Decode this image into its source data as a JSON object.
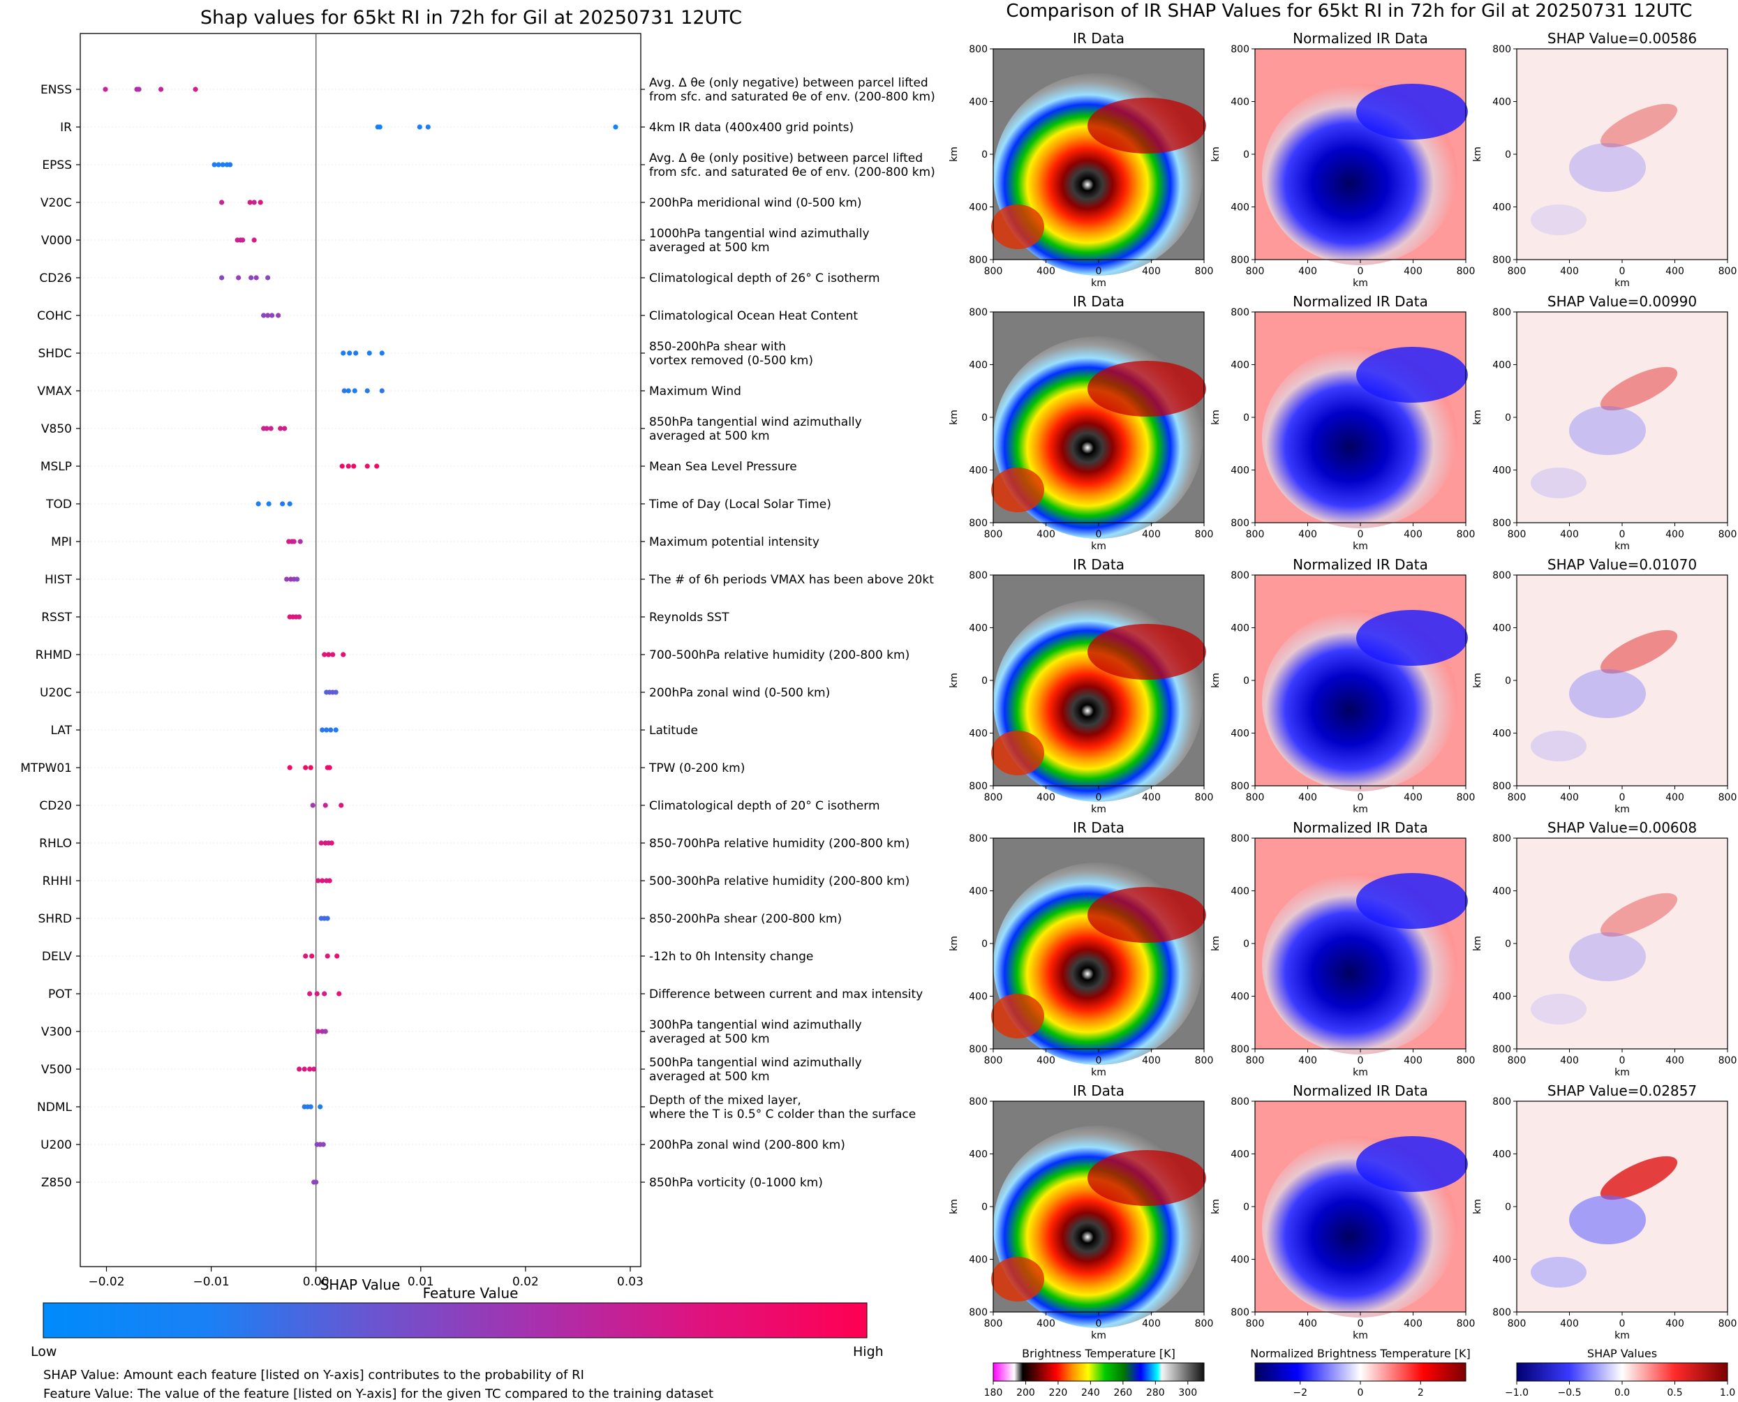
{
  "chart_data": [
    {
      "type": "scatter",
      "title": "Shap values for 65kt RI in 72h for Gil at 20250731 12UTC",
      "xlabel": "SHAP Value",
      "xlim": [
        -0.0225,
        0.031
      ],
      "x_ticks": [
        "−0.02",
        "−0.01",
        "0.00",
        "0.01",
        "0.02",
        "0.03"
      ],
      "x_tick_values": [
        -0.02,
        -0.01,
        0.0,
        0.01,
        0.02,
        0.03
      ],
      "colorbar": {
        "title": "Feature Value",
        "low_label": "Low",
        "high_label": "High",
        "colors": [
          "#008bfb",
          "#3a6fe8",
          "#7a4fc8",
          "#b12fa8",
          "#e0147a",
          "#ff0052"
        ]
      },
      "features": [
        {
          "name": "ENSS",
          "desc": [
            "Avg. Δ θe (only negative) between parcel lifted",
            "from sfc. and saturated θe of env. (200-800 km)"
          ],
          "points": [
            [
              -0.0201,
              0.7
            ],
            [
              -0.0171,
              0.65
            ],
            [
              -0.0169,
              0.6
            ],
            [
              -0.0148,
              0.7
            ],
            [
              -0.0115,
              0.75
            ]
          ]
        },
        {
          "name": "IR",
          "desc": [
            "4km IR data (400x400 grid points)"
          ],
          "points": [
            [
              0.0059,
              0.1
            ],
            [
              0.0061,
              0.05
            ],
            [
              0.0099,
              0.1
            ],
            [
              0.0107,
              0.1
            ],
            [
              0.0286,
              0.05
            ]
          ]
        },
        {
          "name": "EPSS",
          "desc": [
            "Avg. Δ θe (only positive) between parcel lifted",
            "from sfc. and saturated θe of env. (200-800 km)"
          ],
          "points": [
            [
              -0.0097,
              0.1
            ],
            [
              -0.0093,
              0.08
            ],
            [
              -0.0089,
              0.1
            ],
            [
              -0.0085,
              0.05
            ],
            [
              -0.0082,
              0.12
            ]
          ]
        },
        {
          "name": "V20C",
          "desc": [
            "200hPa meridional wind (0-500 km)"
          ],
          "points": [
            [
              -0.009,
              0.7
            ],
            [
              -0.0063,
              0.75
            ],
            [
              -0.0059,
              0.7
            ],
            [
              -0.0053,
              0.8
            ]
          ]
        },
        {
          "name": "V000",
          "desc": [
            "1000hPa tangential wind azimuthally",
            "averaged at 500 km"
          ],
          "points": [
            [
              -0.0075,
              0.7
            ],
            [
              -0.0072,
              0.72
            ],
            [
              -0.007,
              0.68
            ],
            [
              -0.0059,
              0.75
            ]
          ]
        },
        {
          "name": "CD26",
          "desc": [
            "Climatological depth of 26° C isotherm"
          ],
          "points": [
            [
              -0.009,
              0.45
            ],
            [
              -0.0074,
              0.5
            ],
            [
              -0.0062,
              0.45
            ],
            [
              -0.0057,
              0.5
            ],
            [
              -0.0046,
              0.45
            ]
          ]
        },
        {
          "name": "COHC",
          "desc": [
            "Climatological Ocean Heat Content"
          ],
          "points": [
            [
              -0.005,
              0.45
            ],
            [
              -0.0046,
              0.5
            ],
            [
              -0.0042,
              0.45
            ],
            [
              -0.0036,
              0.5
            ]
          ]
        },
        {
          "name": "SHDC",
          "desc": [
            "850-200hPa shear with",
            "vortex removed (0-500 km)"
          ],
          "points": [
            [
              0.0026,
              0.1
            ],
            [
              0.0032,
              0.1
            ],
            [
              0.0038,
              0.12
            ],
            [
              0.0051,
              0.1
            ],
            [
              0.0063,
              0.1
            ]
          ]
        },
        {
          "name": "VMAX",
          "desc": [
            "Maximum Wind"
          ],
          "points": [
            [
              0.0027,
              0.15
            ],
            [
              0.0031,
              0.12
            ],
            [
              0.0037,
              0.1
            ],
            [
              0.0049,
              0.12
            ],
            [
              0.0063,
              0.15
            ]
          ]
        },
        {
          "name": "V850",
          "desc": [
            "850hPa tangential wind azimuthally",
            "averaged at 500 km"
          ],
          "points": [
            [
              -0.005,
              0.7
            ],
            [
              -0.0047,
              0.72
            ],
            [
              -0.0043,
              0.7
            ],
            [
              -0.0034,
              0.75
            ],
            [
              -0.003,
              0.72
            ]
          ]
        },
        {
          "name": "MSLP",
          "desc": [
            "Mean Sea Level Pressure"
          ],
          "points": [
            [
              0.0025,
              0.9
            ],
            [
              0.0031,
              0.88
            ],
            [
              0.0036,
              0.9
            ],
            [
              0.0049,
              0.88
            ],
            [
              0.0058,
              0.9
            ]
          ]
        },
        {
          "name": "TOD",
          "desc": [
            "Time of Day (Local Solar Time)"
          ],
          "points": [
            [
              -0.0055,
              0.1
            ],
            [
              -0.0045,
              0.08
            ],
            [
              -0.0032,
              0.12
            ],
            [
              -0.0025,
              0.1
            ]
          ]
        },
        {
          "name": "MPI",
          "desc": [
            "Maximum potential intensity"
          ],
          "points": [
            [
              -0.0026,
              0.75
            ],
            [
              -0.0023,
              0.72
            ],
            [
              -0.0021,
              0.7
            ],
            [
              -0.0015,
              0.6
            ]
          ]
        },
        {
          "name": "HIST",
          "desc": [
            "The # of 6h periods VMAX has been above 20kt"
          ],
          "points": [
            [
              -0.0028,
              0.5
            ],
            [
              -0.0024,
              0.55
            ],
            [
              -0.0021,
              0.5
            ],
            [
              -0.0018,
              0.45
            ]
          ]
        },
        {
          "name": "RSST",
          "desc": [
            "Reynolds SST"
          ],
          "points": [
            [
              -0.0025,
              0.8
            ],
            [
              -0.0022,
              0.78
            ],
            [
              -0.0019,
              0.8
            ],
            [
              -0.0016,
              0.75
            ]
          ]
        },
        {
          "name": "RHMD",
          "desc": [
            "700-500hPa relative humidity (200-800 km)"
          ],
          "points": [
            [
              0.0008,
              0.8
            ],
            [
              0.0012,
              0.85
            ],
            [
              0.0016,
              0.8
            ],
            [
              0.0026,
              0.85
            ]
          ]
        },
        {
          "name": "U20C",
          "desc": [
            "200hPa zonal wind (0-500 km)"
          ],
          "points": [
            [
              0.001,
              0.3
            ],
            [
              0.0013,
              0.3
            ],
            [
              0.0016,
              0.35
            ],
            [
              0.0019,
              0.3
            ]
          ]
        },
        {
          "name": "LAT",
          "desc": [
            "Latitude"
          ],
          "points": [
            [
              0.0006,
              0.15
            ],
            [
              0.001,
              0.12
            ],
            [
              0.0014,
              0.15
            ],
            [
              0.0019,
              0.1
            ]
          ]
        },
        {
          "name": "MTPW01",
          "desc": [
            "TPW (0-200 km)"
          ],
          "points": [
            [
              -0.0025,
              0.9
            ],
            [
              -0.001,
              0.88
            ],
            [
              -0.0005,
              0.9
            ],
            [
              0.0011,
              0.85
            ],
            [
              0.0013,
              0.9
            ]
          ]
        },
        {
          "name": "CD20",
          "desc": [
            "Climatological depth of 20° C isotherm"
          ],
          "points": [
            [
              -0.0003,
              0.55
            ],
            [
              0.0009,
              0.7
            ],
            [
              0.0024,
              0.8
            ]
          ]
        },
        {
          "name": "RHLO",
          "desc": [
            "850-700hPa relative humidity (200-800 km)"
          ],
          "points": [
            [
              0.0005,
              0.75
            ],
            [
              0.0009,
              0.8
            ],
            [
              0.0012,
              0.75
            ],
            [
              0.0015,
              0.8
            ]
          ]
        },
        {
          "name": "RHHI",
          "desc": [
            "500-300hPa relative humidity (200-800 km)"
          ],
          "points": [
            [
              0.0002,
              0.75
            ],
            [
              0.0006,
              0.8
            ],
            [
              0.001,
              0.75
            ],
            [
              0.0013,
              0.8
            ]
          ]
        },
        {
          "name": "SHRD",
          "desc": [
            "850-200hPa shear (200-800 km)"
          ],
          "points": [
            [
              0.0005,
              0.2
            ],
            [
              0.0008,
              0.25
            ],
            [
              0.0011,
              0.2
            ]
          ]
        },
        {
          "name": "DELV",
          "desc": [
            "-12h to 0h Intensity change"
          ],
          "points": [
            [
              -0.001,
              0.8
            ],
            [
              -0.0004,
              0.85
            ],
            [
              0.0011,
              0.8
            ],
            [
              0.002,
              0.85
            ]
          ]
        },
        {
          "name": "POT",
          "desc": [
            "Difference between current and max intensity"
          ],
          "points": [
            [
              -0.0006,
              0.75
            ],
            [
              0.0001,
              0.8
            ],
            [
              0.0008,
              0.75
            ],
            [
              0.0022,
              0.8
            ]
          ]
        },
        {
          "name": "V300",
          "desc": [
            "300hPa tangential wind azimuthally",
            "averaged at 500 km"
          ],
          "points": [
            [
              0.0002,
              0.65
            ],
            [
              0.0006,
              0.6
            ],
            [
              0.0009,
              0.55
            ]
          ]
        },
        {
          "name": "V500",
          "desc": [
            "500hPa tangential wind azimuthally",
            "averaged at 500 km"
          ],
          "points": [
            [
              -0.0016,
              0.8
            ],
            [
              -0.0011,
              0.78
            ],
            [
              -0.0006,
              0.8
            ],
            [
              -0.0002,
              0.75
            ]
          ]
        },
        {
          "name": "NDML",
          "desc": [
            "Depth of the mixed layer,",
            "where the T is 0.5° C colder than the surface"
          ],
          "points": [
            [
              -0.0011,
              0.15
            ],
            [
              -0.0008,
              0.1
            ],
            [
              -0.0005,
              0.15
            ],
            [
              0.0004,
              0.1
            ]
          ]
        },
        {
          "name": "U200",
          "desc": [
            "200hPa zonal wind (200-800 km)"
          ],
          "points": [
            [
              0.0001,
              0.45
            ],
            [
              0.0004,
              0.5
            ],
            [
              0.0007,
              0.45
            ]
          ]
        },
        {
          "name": "Z850",
          "desc": [
            "850hPa vorticity (0-1000 km)"
          ],
          "points": [
            [
              -0.0002,
              0.5
            ],
            [
              0.0,
              0.45
            ]
          ]
        }
      ]
    },
    {
      "type": "heatmap",
      "title": "Comparison of IR SHAP Values for 65kt RI in 72h for Gil at 20250731 12UTC",
      "column_titles": [
        "IR Data",
        "Normalized IR Data"
      ],
      "shap_titles": [
        "SHAP Value=0.00586",
        "SHAP Value=0.00990",
        "SHAP Value=0.01070",
        "SHAP Value=0.00608",
        "SHAP Value=0.02857"
      ],
      "shap_values": [
        0.00586,
        0.0099,
        0.0107,
        0.00608,
        0.02857
      ],
      "axis_label": "km",
      "x_ticks": [
        "800",
        "400",
        "0",
        "400",
        "800"
      ],
      "y_ticks": [
        "800",
        "400",
        "0",
        "400",
        "800"
      ],
      "extent_km": [
        -800,
        800
      ],
      "colorbars": [
        {
          "label": "Brightness Temperature [K]",
          "ticks": [
            "180",
            "200",
            "220",
            "240",
            "260",
            "280",
            "300"
          ],
          "range": [
            180,
            310
          ]
        },
        {
          "label": "Normalized Brightness Temperature [K]",
          "ticks": [
            "−2",
            "0",
            "2"
          ],
          "range": [
            -3.5,
            3.5
          ]
        },
        {
          "label": "SHAP Values",
          "ticks": [
            "−1.0",
            "−0.5",
            "0.0",
            "0.5",
            "1.0"
          ],
          "range": [
            -1.0,
            1.0
          ],
          "scale_note": "1e−5"
        }
      ]
    }
  ],
  "footnotes": [
    "SHAP Value: Amount each feature [listed on Y-axis] contributes to the probability of RI",
    "Feature Value: The value of the feature [listed on Y-axis] for the given TC compared to the training dataset"
  ]
}
